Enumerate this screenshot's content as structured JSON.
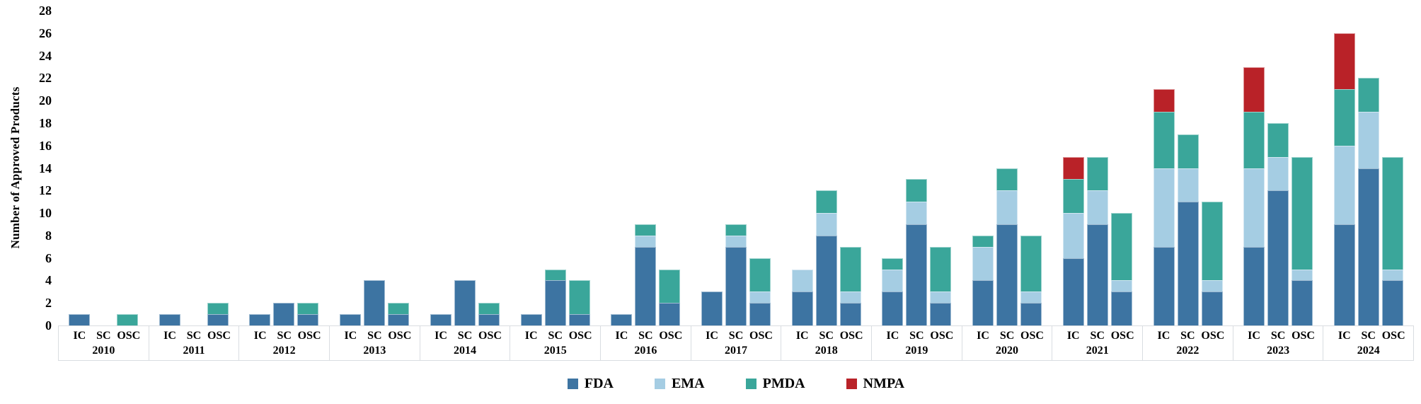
{
  "chart_data": {
    "type": "bar",
    "stacked": true,
    "title": "",
    "ylabel": "Number of Approved Products",
    "xlabel": "",
    "ylim": [
      0,
      28
    ],
    "ytick_step": 2,
    "grid": false,
    "legend_position": "bottom-center",
    "bar_labels": [
      "IC",
      "SC",
      "OSC"
    ],
    "series_order": [
      "FDA",
      "EMA",
      "PMDA",
      "NMPA"
    ],
    "colors": {
      "FDA": "#3d74a2",
      "EMA": "#a5cde3",
      "PMDA": "#3aa69a",
      "NMPA": "#b92228",
      "axis_line": "#d9dde1",
      "background": "#ffffff",
      "text": "#000000"
    },
    "groups": [
      {
        "year": "2010",
        "bars": [
          {
            "label": "IC",
            "segments": {
              "FDA": 1,
              "EMA": 0,
              "PMDA": 0,
              "NMPA": 0
            }
          },
          {
            "label": "SC",
            "segments": {
              "FDA": 0,
              "EMA": 0,
              "PMDA": 0,
              "NMPA": 0
            }
          },
          {
            "label": "OSC",
            "segments": {
              "FDA": 0,
              "EMA": 0,
              "PMDA": 1,
              "NMPA": 0
            }
          }
        ]
      },
      {
        "year": "2011",
        "bars": [
          {
            "label": "IC",
            "segments": {
              "FDA": 1,
              "EMA": 0,
              "PMDA": 0,
              "NMPA": 0
            }
          },
          {
            "label": "SC",
            "segments": {
              "FDA": 0,
              "EMA": 0,
              "PMDA": 0,
              "NMPA": 0
            }
          },
          {
            "label": "OSC",
            "segments": {
              "FDA": 1,
              "EMA": 0,
              "PMDA": 1,
              "NMPA": 0
            }
          }
        ]
      },
      {
        "year": "2012",
        "bars": [
          {
            "label": "IC",
            "segments": {
              "FDA": 1,
              "EMA": 0,
              "PMDA": 0,
              "NMPA": 0
            }
          },
          {
            "label": "SC",
            "segments": {
              "FDA": 2,
              "EMA": 0,
              "PMDA": 0,
              "NMPA": 0
            }
          },
          {
            "label": "OSC",
            "segments": {
              "FDA": 1,
              "EMA": 0,
              "PMDA": 1,
              "NMPA": 0
            }
          }
        ]
      },
      {
        "year": "2013",
        "bars": [
          {
            "label": "IC",
            "segments": {
              "FDA": 1,
              "EMA": 0,
              "PMDA": 0,
              "NMPA": 0
            }
          },
          {
            "label": "SC",
            "segments": {
              "FDA": 4,
              "EMA": 0,
              "PMDA": 0,
              "NMPA": 0
            }
          },
          {
            "label": "OSC",
            "segments": {
              "FDA": 1,
              "EMA": 0,
              "PMDA": 1,
              "NMPA": 0
            }
          }
        ]
      },
      {
        "year": "2014",
        "bars": [
          {
            "label": "IC",
            "segments": {
              "FDA": 1,
              "EMA": 0,
              "PMDA": 0,
              "NMPA": 0
            }
          },
          {
            "label": "SC",
            "segments": {
              "FDA": 4,
              "EMA": 0,
              "PMDA": 0,
              "NMPA": 0
            }
          },
          {
            "label": "OSC",
            "segments": {
              "FDA": 1,
              "EMA": 0,
              "PMDA": 1,
              "NMPA": 0
            }
          }
        ]
      },
      {
        "year": "2015",
        "bars": [
          {
            "label": "IC",
            "segments": {
              "FDA": 1,
              "EMA": 0,
              "PMDA": 0,
              "NMPA": 0
            }
          },
          {
            "label": "SC",
            "segments": {
              "FDA": 4,
              "EMA": 0,
              "PMDA": 1,
              "NMPA": 0
            }
          },
          {
            "label": "OSC",
            "segments": {
              "FDA": 1,
              "EMA": 0,
              "PMDA": 3,
              "NMPA": 0
            }
          }
        ]
      },
      {
        "year": "2016",
        "bars": [
          {
            "label": "IC",
            "segments": {
              "FDA": 1,
              "EMA": 0,
              "PMDA": 0,
              "NMPA": 0
            }
          },
          {
            "label": "SC",
            "segments": {
              "FDA": 7,
              "EMA": 1,
              "PMDA": 1,
              "NMPA": 0
            }
          },
          {
            "label": "OSC",
            "segments": {
              "FDA": 2,
              "EMA": 0,
              "PMDA": 3,
              "NMPA": 0
            }
          }
        ]
      },
      {
        "year": "2017",
        "bars": [
          {
            "label": "IC",
            "segments": {
              "FDA": 3,
              "EMA": 0,
              "PMDA": 0,
              "NMPA": 0
            }
          },
          {
            "label": "SC",
            "segments": {
              "FDA": 7,
              "EMA": 1,
              "PMDA": 1,
              "NMPA": 0
            }
          },
          {
            "label": "OSC",
            "segments": {
              "FDA": 2,
              "EMA": 1,
              "PMDA": 3,
              "NMPA": 0
            }
          }
        ]
      },
      {
        "year": "2018",
        "bars": [
          {
            "label": "IC",
            "segments": {
              "FDA": 3,
              "EMA": 2,
              "PMDA": 0,
              "NMPA": 0
            }
          },
          {
            "label": "SC",
            "segments": {
              "FDA": 8,
              "EMA": 2,
              "PMDA": 2,
              "NMPA": 0
            }
          },
          {
            "label": "OSC",
            "segments": {
              "FDA": 2,
              "EMA": 1,
              "PMDA": 4,
              "NMPA": 0
            }
          }
        ]
      },
      {
        "year": "2019",
        "bars": [
          {
            "label": "IC",
            "segments": {
              "FDA": 3,
              "EMA": 2,
              "PMDA": 1,
              "NMPA": 0
            }
          },
          {
            "label": "SC",
            "segments": {
              "FDA": 9,
              "EMA": 2,
              "PMDA": 2,
              "NMPA": 0
            }
          },
          {
            "label": "OSC",
            "segments": {
              "FDA": 2,
              "EMA": 1,
              "PMDA": 4,
              "NMPA": 0
            }
          }
        ]
      },
      {
        "year": "2020",
        "bars": [
          {
            "label": "IC",
            "segments": {
              "FDA": 4,
              "EMA": 3,
              "PMDA": 1,
              "NMPA": 0
            }
          },
          {
            "label": "SC",
            "segments": {
              "FDA": 9,
              "EMA": 3,
              "PMDA": 2,
              "NMPA": 0
            }
          },
          {
            "label": "OSC",
            "segments": {
              "FDA": 2,
              "EMA": 1,
              "PMDA": 5,
              "NMPA": 0
            }
          }
        ]
      },
      {
        "year": "2021",
        "bars": [
          {
            "label": "IC",
            "segments": {
              "FDA": 6,
              "EMA": 4,
              "PMDA": 3,
              "NMPA": 2
            }
          },
          {
            "label": "SC",
            "segments": {
              "FDA": 9,
              "EMA": 3,
              "PMDA": 3,
              "NMPA": 0
            }
          },
          {
            "label": "OSC",
            "segments": {
              "FDA": 3,
              "EMA": 1,
              "PMDA": 6,
              "NMPA": 0
            }
          }
        ]
      },
      {
        "year": "2022",
        "bars": [
          {
            "label": "IC",
            "segments": {
              "FDA": 7,
              "EMA": 7,
              "PMDA": 5,
              "NMPA": 2
            }
          },
          {
            "label": "SC",
            "segments": {
              "FDA": 11,
              "EMA": 3,
              "PMDA": 3,
              "NMPA": 0
            }
          },
          {
            "label": "OSC",
            "segments": {
              "FDA": 3,
              "EMA": 1,
              "PMDA": 7,
              "NMPA": 0
            }
          }
        ]
      },
      {
        "year": "2023",
        "bars": [
          {
            "label": "IC",
            "segments": {
              "FDA": 7,
              "EMA": 7,
              "PMDA": 5,
              "NMPA": 4
            }
          },
          {
            "label": "SC",
            "segments": {
              "FDA": 12,
              "EMA": 3,
              "PMDA": 3,
              "NMPA": 0
            }
          },
          {
            "label": "OSC",
            "segments": {
              "FDA": 4,
              "EMA": 1,
              "PMDA": 10,
              "NMPA": 0
            }
          }
        ]
      },
      {
        "year": "2024",
        "bars": [
          {
            "label": "IC",
            "segments": {
              "FDA": 9,
              "EMA": 7,
              "PMDA": 5,
              "NMPA": 5
            }
          },
          {
            "label": "SC",
            "segments": {
              "FDA": 14,
              "EMA": 5,
              "PMDA": 3,
              "NMPA": 0
            }
          },
          {
            "label": "OSC",
            "segments": {
              "FDA": 4,
              "EMA": 1,
              "PMDA": 10,
              "NMPA": 0
            }
          }
        ]
      }
    ]
  }
}
